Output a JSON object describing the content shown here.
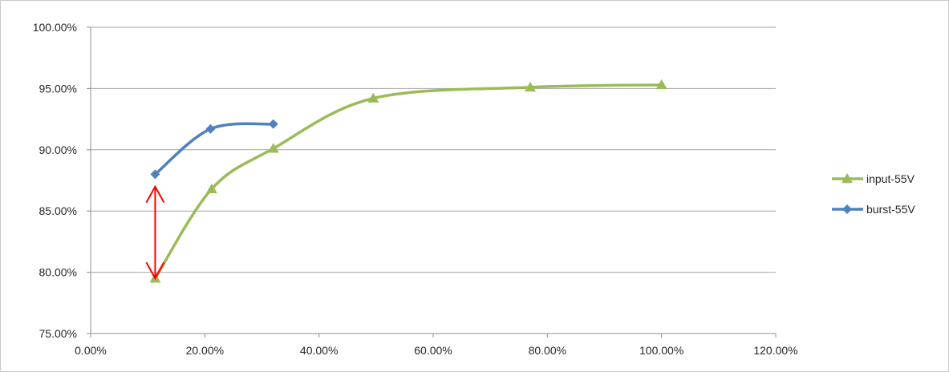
{
  "chart_data": {
    "type": "line",
    "title": "",
    "xlabel": "",
    "ylabel": "",
    "xlim": [
      0,
      120
    ],
    "ylim": [
      75,
      100
    ],
    "x_ticks": [
      0,
      20,
      40,
      60,
      80,
      100,
      120
    ],
    "y_ticks": [
      75,
      80,
      85,
      90,
      95,
      100
    ],
    "x_tick_labels": [
      "0.00%",
      "20.00%",
      "40.00%",
      "60.00%",
      "80.00%",
      "100.00%",
      "120.00%"
    ],
    "y_tick_labels": [
      "75.00%",
      "80.00%",
      "85.00%",
      "90.00%",
      "95.00%",
      "100.00%"
    ],
    "grid": "horizontal",
    "legend_position": "right",
    "series": [
      {
        "name": "input-55V",
        "color": "#9bbb59",
        "marker": "triangle",
        "smooth": true,
        "points": [
          {
            "x": 11.3,
            "y": 79.5
          },
          {
            "x": 21.2,
            "y": 86.8
          },
          {
            "x": 32.0,
            "y": 90.1
          },
          {
            "x": 49.5,
            "y": 94.2
          },
          {
            "x": 77.0,
            "y": 95.1
          },
          {
            "x": 100.0,
            "y": 95.3
          }
        ]
      },
      {
        "name": "burst-55V",
        "color": "#4f81bd",
        "marker": "diamond",
        "smooth": true,
        "points": [
          {
            "x": 11.3,
            "y": 88.0
          },
          {
            "x": 21.0,
            "y": 91.7
          },
          {
            "x": 32.0,
            "y": 92.1
          }
        ]
      }
    ],
    "annotations": [
      {
        "type": "double-arrow",
        "color": "#ff0000",
        "x": 11.3,
        "y_from": 79.5,
        "y_to": 87.0
      }
    ]
  }
}
